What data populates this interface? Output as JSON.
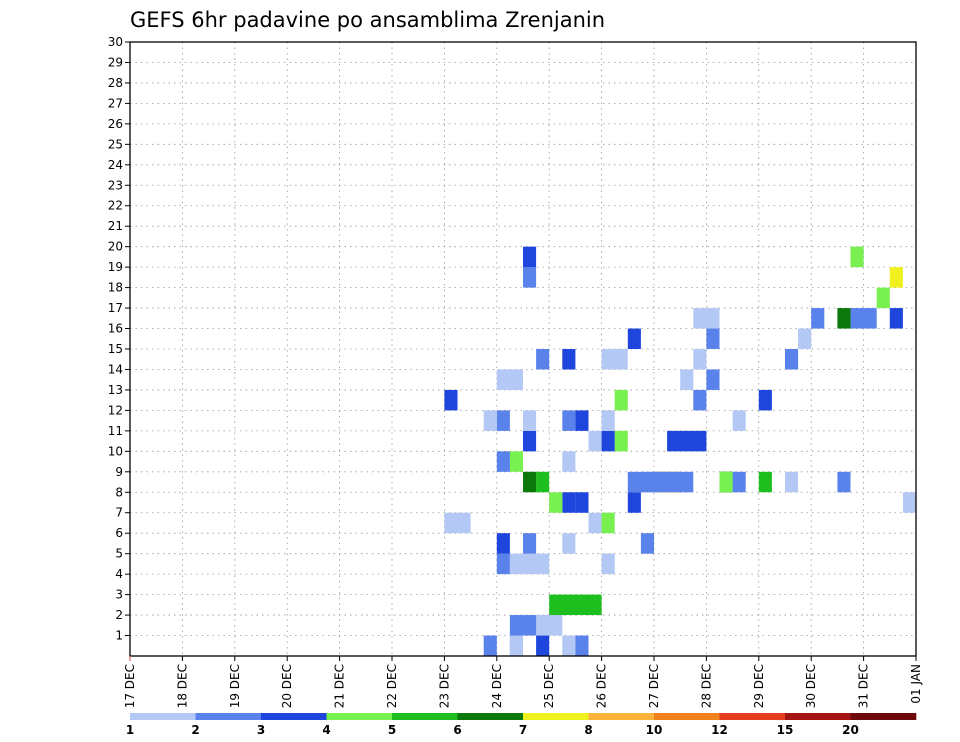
{
  "chart_data": {
    "type": "heatmap",
    "title": "GEFS 6hr padavine po ansamblima Zrenjanin",
    "xlabel": "",
    "ylabel": "",
    "x_tick_labels": [
      "17 DEC",
      "18 DEC",
      "19 DEC",
      "20 DEC",
      "21 DEC",
      "22 DEC",
      "23 DEC",
      "24 DEC",
      "25 DEC",
      "26 DEC",
      "27 DEC",
      "28 DEC",
      "29 DEC",
      "30 DEC",
      "31 DEC",
      "01 JAN"
    ],
    "x_unit": "6-hour step (4 steps per day, step 0 = 17 DEC 00z)",
    "xlim": [
      0,
      60
    ],
    "y_tick_labels": [
      "1",
      "2",
      "3",
      "4",
      "5",
      "6",
      "7",
      "8",
      "9",
      "10",
      "11",
      "12",
      "13",
      "14",
      "15",
      "16",
      "17",
      "18",
      "19",
      "20",
      "21",
      "22",
      "23",
      "24",
      "25",
      "26",
      "27",
      "28",
      "29",
      "30"
    ],
    "ylim": [
      0,
      30
    ],
    "grid": true,
    "legend": "bottom colorbar",
    "levels": [
      1,
      2,
      3,
      4,
      5,
      6,
      7,
      8,
      10,
      12,
      15,
      20
    ],
    "level_labels": [
      "1",
      "2",
      "3",
      "4",
      "5",
      "6",
      "7",
      "8",
      "10",
      "12",
      "15",
      "20"
    ],
    "colors": [
      "#b4c8f5",
      "#5a82eb",
      "#1e46dc",
      "#78f050",
      "#1ebe1e",
      "#0a780a",
      "#f0f01e",
      "#fab43c",
      "#f0821e",
      "#e63c1e",
      "#a51414",
      "#6e0a0a"
    ],
    "cells": [
      [
        1,
        29,
        1,
        2
      ],
      [
        1,
        29,
        1,
        1
      ],
      [
        1,
        27,
        1,
        2
      ],
      [
        1,
        33,
        1,
        1
      ],
      [
        1,
        34,
        1,
        2
      ],
      [
        1,
        31,
        1,
        3
      ],
      [
        2,
        29,
        1,
        1
      ],
      [
        2,
        29,
        3,
        2
      ],
      [
        2,
        31,
        2,
        1
      ],
      [
        3,
        32,
        4,
        5
      ],
      [
        5,
        28,
        1,
        2
      ],
      [
        5,
        29,
        3,
        1
      ],
      [
        5,
        36,
        1,
        1
      ],
      [
        6,
        28,
        1,
        3
      ],
      [
        6,
        39,
        1,
        2
      ],
      [
        6,
        30,
        1,
        2
      ],
      [
        6,
        33,
        1,
        1
      ],
      [
        7,
        24,
        2,
        1
      ],
      [
        7,
        35,
        1,
        1
      ],
      [
        7,
        36,
        1,
        4
      ],
      [
        8,
        38,
        1,
        3
      ],
      [
        8,
        33,
        1,
        3
      ],
      [
        8,
        59,
        1,
        1
      ],
      [
        8,
        32,
        1,
        4
      ],
      [
        8,
        34,
        1,
        3
      ],
      [
        9,
        45,
        1,
        5
      ],
      [
        9,
        39,
        1,
        1
      ],
      [
        9,
        41,
        1,
        8
      ],
      [
        9,
        45,
        1,
        6
      ],
      [
        9,
        40,
        1,
        1
      ],
      [
        9,
        31,
        1,
        5
      ],
      [
        9,
        30,
        1,
        6
      ],
      [
        9,
        50,
        1,
        1
      ],
      [
        9,
        46,
        1,
        2
      ],
      [
        9,
        41,
        1,
        8
      ],
      [
        9,
        54,
        1,
        2
      ],
      [
        9,
        38,
        3,
        2
      ],
      [
        9,
        40,
        1,
        7
      ],
      [
        9,
        40,
        3,
        2
      ],
      [
        9,
        45,
        1,
        4
      ],
      [
        9,
        48,
        1,
        5
      ],
      [
        10,
        29,
        1,
        4
      ],
      [
        10,
        28,
        1,
        2
      ],
      [
        10,
        33,
        1,
        1
      ],
      [
        11,
        35,
        1,
        1
      ],
      [
        11,
        30,
        1,
        3
      ],
      [
        11,
        41,
        3,
        3
      ],
      [
        11,
        37,
        1,
        4
      ],
      [
        11,
        36,
        1,
        3
      ],
      [
        12,
        34,
        1,
        3
      ],
      [
        12,
        36,
        1,
        1
      ],
      [
        12,
        33,
        1,
        2
      ],
      [
        12,
        30,
        1,
        1
      ],
      [
        12,
        28,
        1,
        2
      ],
      [
        12,
        27,
        1,
        1
      ],
      [
        12,
        46,
        1,
        1
      ],
      [
        13,
        24,
        1,
        3
      ],
      [
        13,
        43,
        1,
        2
      ],
      [
        13,
        48,
        1,
        3
      ],
      [
        13,
        37,
        1,
        4
      ],
      [
        14,
        29,
        1,
        1
      ],
      [
        14,
        42,
        1,
        1
      ],
      [
        14,
        44,
        1,
        2
      ],
      [
        14,
        28,
        1,
        1
      ],
      [
        15,
        31,
        1,
        2
      ],
      [
        15,
        50,
        1,
        2
      ],
      [
        15,
        36,
        2,
        1
      ],
      [
        15,
        43,
        1,
        1
      ],
      [
        15,
        33,
        1,
        3
      ],
      [
        16,
        38,
        1,
        3
      ],
      [
        16,
        44,
        1,
        2
      ],
      [
        16,
        51,
        1,
        1
      ],
      [
        17,
        52,
        1,
        2
      ],
      [
        17,
        58,
        1,
        3
      ],
      [
        17,
        54,
        1,
        6
      ],
      [
        17,
        43,
        2,
        1
      ],
      [
        17,
        55,
        2,
        2
      ],
      [
        18,
        57,
        1,
        4
      ],
      [
        19,
        30,
        1,
        2
      ],
      [
        19,
        58,
        1,
        7
      ],
      [
        20,
        30,
        1,
        3
      ],
      [
        20,
        55,
        1,
        1
      ],
      [
        20,
        55,
        1,
        4
      ]
    ]
  }
}
